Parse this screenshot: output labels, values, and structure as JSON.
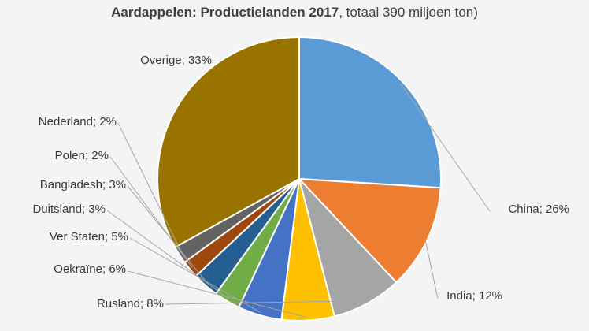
{
  "chart_data": {
    "type": "pie",
    "title": "Aardappelen: Productielanden 2017",
    "subtitle": ", totaal 390 miljoen ton)",
    "slices": [
      {
        "label": "China",
        "value": 26,
        "display": "China; 26%",
        "color": "#5b9bd5"
      },
      {
        "label": "India",
        "value": 12,
        "display": "India; 12%",
        "color": "#ed7d31"
      },
      {
        "label": "Rusland",
        "value": 8,
        "display": "Rusland; 8%",
        "color": "#a5a5a5"
      },
      {
        "label": "Oekraïne",
        "value": 6,
        "display": "Oekraïne; 6%",
        "color": "#ffc000"
      },
      {
        "label": "Ver Staten",
        "value": 5,
        "display": "Ver Staten; 5%",
        "color": "#4472c4"
      },
      {
        "label": "Duitsland",
        "value": 3,
        "display": "Duitsland; 3%",
        "color": "#70ad47"
      },
      {
        "label": "Bangladesh",
        "value": 3,
        "display": "Bangladesh; 3%",
        "color": "#255e91"
      },
      {
        "label": "Polen",
        "value": 2,
        "display": "Polen; 2%",
        "color": "#9e480e"
      },
      {
        "label": "Nederland",
        "value": 2,
        "display": "Nederland; 2%",
        "color": "#636363"
      },
      {
        "label": "Overige",
        "value": 33,
        "display": "Overige; 33%",
        "color": "#997300"
      }
    ]
  }
}
